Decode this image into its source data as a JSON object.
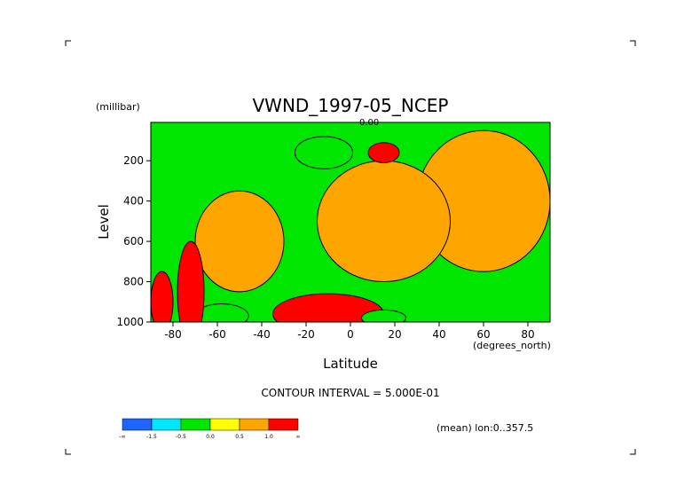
{
  "chart_data": {
    "type": "heatmap",
    "title": "VWND_1997-05_NCEP",
    "xlabel": "Latitude",
    "ylabel": "Level",
    "x_units": "(degrees_north)",
    "y_units": "(millibar)",
    "xlim": [
      -90,
      90
    ],
    "ylim": [
      1000,
      10
    ],
    "x_ticks": [
      -80,
      -60,
      -40,
      -20,
      0,
      20,
      40,
      60,
      80
    ],
    "y_ticks": [
      1000,
      800,
      600,
      400,
      200
    ],
    "x_tick_labels": [
      "-80",
      "-60",
      "-40",
      "-20",
      "0",
      "20",
      "40",
      "60",
      "80"
    ],
    "y_tick_labels": [
      "1000",
      "800",
      "600",
      "400",
      "200"
    ],
    "contour_interval_text": "CONTOUR INTERVAL = 5.000E-01",
    "mean_note": "(mean) lon:0..357.5",
    "zero_contour_label": "0.00",
    "levels": [
      -1.5,
      -0.5,
      0.0,
      0.5,
      1.0
    ],
    "legend": {
      "colors": [
        "#1e64ff",
        "#00e6ff",
        "#00e600",
        "#ffff00",
        "#ffa500",
        "#ff0000"
      ],
      "labels": [
        "-∞",
        "-1.5",
        "-0.5",
        "0.0",
        "0.5",
        "1.0",
        "∞"
      ]
    },
    "regions": [
      {
        "name": "positive-region-north-ne",
        "level": 0.5,
        "cx": 60,
        "cy": 400,
        "rx": 30,
        "ry": 350
      },
      {
        "name": "positive-region-center",
        "level": 0.5,
        "cx": 15,
        "cy": 500,
        "rx": 30,
        "ry": 300
      },
      {
        "name": "positive-region-southwest",
        "level": 0.5,
        "cx": -50,
        "cy": 600,
        "rx": 20,
        "ry": 250
      },
      {
        "name": "max-region-upper-15N",
        "level": 1.0,
        "cx": 15,
        "cy": 160,
        "rx": 7,
        "ry": 50
      },
      {
        "name": "max-region-lower-eq",
        "level": 1.0,
        "cx": -10,
        "cy": 960,
        "rx": 25,
        "ry": 100
      },
      {
        "name": "min-region-upper-15S",
        "level": -0.5,
        "cx": -12,
        "cy": 160,
        "rx": 13,
        "ry": 80
      },
      {
        "name": "min-region-lower-60S",
        "level": -0.5,
        "cx": -58,
        "cy": 970,
        "rx": 12,
        "ry": 60
      },
      {
        "name": "min-region-lower-15N",
        "level": -0.5,
        "cx": 15,
        "cy": 980,
        "rx": 10,
        "ry": 40
      },
      {
        "name": "jet-core-80S",
        "level": 1.5,
        "cx": -85,
        "cy": 900,
        "rx": 5,
        "ry": 150
      },
      {
        "name": "jet-core-73S",
        "level": 1.5,
        "cx": -72,
        "cy": 850,
        "rx": 6,
        "ry": 250
      }
    ]
  }
}
